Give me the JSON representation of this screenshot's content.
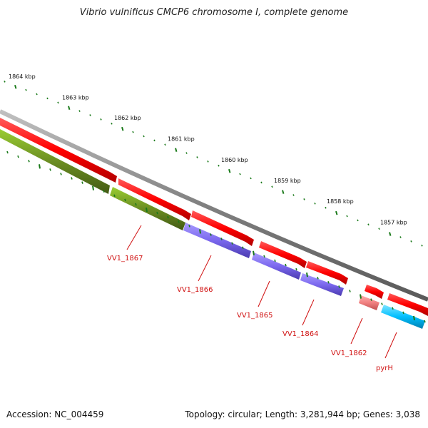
{
  "title": "Vibrio vulnificus CMCP6 chromosome I, complete genome",
  "footer": {
    "accession": "Accession: NC_004459",
    "topology": "Topology: circular; Length: 3,281,944 bp; Genes: 3,038"
  },
  "scale_labels": [
    "1864 kbp",
    "1863 kbp",
    "1862 kbp",
    "1861 kbp",
    "1860 kbp",
    "1859 kbp",
    "1858 kbp",
    "1857 kbp"
  ],
  "genes": [
    {
      "label": "VV1_1867",
      "track_color": "#6b8e23"
    },
    {
      "label": "VV1_1866",
      "track_color": "#7b68ee"
    },
    {
      "label": "VV1_1865",
      "track_color": "#7b68ee"
    },
    {
      "label": "VV1_1864",
      "track_color": "#7b68ee"
    },
    {
      "label": "VV1_1862",
      "track_color": "#f08080"
    },
    {
      "label": "pyrH",
      "track_color": "#00bfff"
    }
  ],
  "colors": {
    "cds": "#ff0000",
    "backbone": "#808080",
    "tick": "#1a7a1a",
    "label": "#d01010"
  }
}
